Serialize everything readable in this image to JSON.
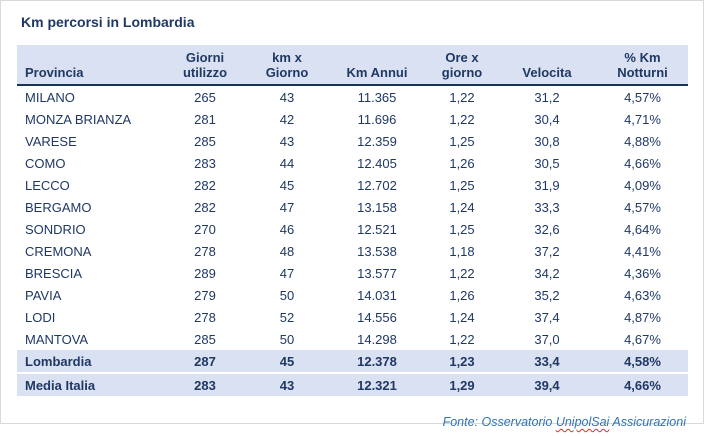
{
  "title": "Km percorsi in Lombardia",
  "table": {
    "headers": [
      "Provincia",
      "Giorni\nutilizzo",
      "km x\nGiorno",
      "Km Annui",
      "Ore x\ngiorno",
      "Velocita",
      "% Km\nNotturni"
    ],
    "rows": [
      [
        "MILANO",
        "265",
        "43",
        "11.365",
        "1,22",
        "31,2",
        "4,57%"
      ],
      [
        "MONZA BRIANZA",
        "281",
        "42",
        "11.696",
        "1,22",
        "30,4",
        "4,71%"
      ],
      [
        "VARESE",
        "285",
        "43",
        "12.359",
        "1,25",
        "30,8",
        "4,88%"
      ],
      [
        "COMO",
        "283",
        "44",
        "12.405",
        "1,26",
        "30,5",
        "4,66%"
      ],
      [
        "LECCO",
        "282",
        "45",
        "12.702",
        "1,25",
        "31,9",
        "4,09%"
      ],
      [
        "BERGAMO",
        "282",
        "47",
        "13.158",
        "1,24",
        "33,3",
        "4,57%"
      ],
      [
        "SONDRIO",
        "270",
        "46",
        "12.521",
        "1,25",
        "32,6",
        "4,64%"
      ],
      [
        "CREMONA",
        "278",
        "48",
        "13.538",
        "1,18",
        "37,2",
        "4,41%"
      ],
      [
        "BRESCIA",
        "289",
        "47",
        "13.577",
        "1,22",
        "34,2",
        "4,36%"
      ],
      [
        "PAVIA",
        "279",
        "50",
        "14.031",
        "1,26",
        "35,2",
        "4,63%"
      ],
      [
        "LODI",
        "278",
        "52",
        "14.556",
        "1,24",
        "37,4",
        "4,87%"
      ],
      [
        "MANTOVA",
        "285",
        "50",
        "14.298",
        "1,22",
        "37,0",
        "4,67%"
      ]
    ],
    "total_rows": [
      [
        "Lombardia",
        "287",
        "45",
        "12.378",
        "1,23",
        "33,4",
        "4,58%"
      ],
      [
        "Media Italia",
        "283",
        "43",
        "12.321",
        "1,29",
        "39,4",
        "4,66%"
      ]
    ]
  },
  "footer": {
    "prefix": "Fonte: Osservatorio ",
    "highlight": "UnipolSai",
    "suffix": " Assicurazioni"
  },
  "colors": {
    "navy": "#1f3864",
    "headerBg": "#d9e1f2",
    "headerBorder": "#17365d",
    "footerBlue": "#2e74b5",
    "spellRed": "#d93025"
  }
}
